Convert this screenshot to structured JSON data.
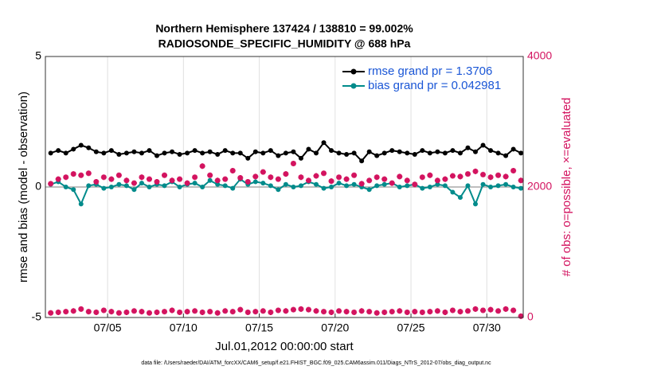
{
  "chart_data": {
    "type": "line",
    "title": "Northern Hemisphere 137424 / 138810 = 99.002%",
    "subtitle": "RADIOSONDE_SPECIFIC_HUMIDITY @ 688 hPa",
    "xlabel": "Jul.01,2012 00:00:00 start",
    "ylabel": "rmse and bias (model - observation)",
    "y2label": "# of obs: o=possible, ×=evaluated",
    "footnote": "data file: /Users/raeder/DAI/ATM_forcXX/CAM6_setup/f.e21.FHIST_BGC.f09_025.CAM6assim.011/Diags_NTrS_2012-07/obs_diag_output.nc",
    "x": [
      1.25,
      1.75,
      2.25,
      2.75,
      3.25,
      3.75,
      4.25,
      4.75,
      5.25,
      5.75,
      6.25,
      6.75,
      7.25,
      7.75,
      8.25,
      8.75,
      9.25,
      9.75,
      10.25,
      10.75,
      11.25,
      11.75,
      12.25,
      12.75,
      13.25,
      13.75,
      14.25,
      14.75,
      15.25,
      15.75,
      16.25,
      16.75,
      17.25,
      17.75,
      18.25,
      18.75,
      19.25,
      19.75,
      20.25,
      20.75,
      21.25,
      21.75,
      22.25,
      22.75,
      23.25,
      23.75,
      24.25,
      24.75,
      25.25,
      25.75,
      26.25,
      26.75,
      27.25,
      27.75,
      28.25,
      28.75,
      29.25,
      29.75,
      30.25,
      30.75,
      31.25,
      31.75,
      32.25
    ],
    "xlim": [
      0.9,
      32.4
    ],
    "xticks": [
      {
        "value": 5,
        "label": "07/05"
      },
      {
        "value": 10,
        "label": "07/10"
      },
      {
        "value": 15,
        "label": "07/15"
      },
      {
        "value": 20,
        "label": "07/20"
      },
      {
        "value": 25,
        "label": "07/25"
      },
      {
        "value": 30,
        "label": "07/30"
      }
    ],
    "ylim": [
      -5,
      5
    ],
    "yticks": [
      -5,
      0,
      5
    ],
    "y2lim": [
      0,
      4000
    ],
    "y2ticks": [
      0,
      2000,
      4000
    ],
    "grid": true,
    "zero_line": true,
    "legend": "upper right",
    "series": [
      {
        "name": "rmse grand pr = 1.3706",
        "color": "#000000",
        "line": true,
        "marker": "dot",
        "values": [
          1.3,
          1.4,
          1.3,
          1.45,
          1.6,
          1.5,
          1.35,
          1.3,
          1.4,
          1.25,
          1.3,
          1.35,
          1.3,
          1.4,
          1.2,
          1.3,
          1.35,
          1.25,
          1.3,
          1.4,
          1.3,
          1.35,
          1.25,
          1.4,
          1.3,
          1.3,
          1.1,
          1.35,
          1.3,
          1.4,
          1.2,
          1.3,
          1.35,
          1.1,
          1.45,
          1.3,
          1.7,
          1.4,
          1.3,
          1.25,
          1.3,
          1.0,
          1.35,
          1.2,
          1.3,
          1.4,
          1.35,
          1.3,
          1.25,
          1.4,
          1.3,
          1.35,
          1.3,
          1.4,
          1.3,
          1.5,
          1.35,
          1.6,
          1.4,
          1.3,
          1.2,
          1.45,
          1.3
        ]
      },
      {
        "name": "bias grand pr = 0.042981",
        "color": "#008b8b",
        "line": true,
        "marker": "dot",
        "values": [
          0.1,
          0.2,
          0.0,
          -0.1,
          -0.65,
          0.05,
          0.1,
          -0.05,
          0.0,
          0.1,
          0.05,
          -0.1,
          0.15,
          0.0,
          0.1,
          0.05,
          0.2,
          0.0,
          0.1,
          0.15,
          0.0,
          0.25,
          0.1,
          0.05,
          -0.05,
          0.3,
          0.1,
          0.2,
          0.15,
          0.05,
          -0.1,
          0.1,
          0.0,
          0.05,
          0.2,
          0.1,
          -0.05,
          0.0,
          0.15,
          0.05,
          0.1,
          0.0,
          -0.1,
          0.05,
          0.1,
          0.15,
          0.0,
          0.05,
          0.1,
          -0.05,
          0.0,
          0.1,
          0.05,
          -0.2,
          -0.4,
          0.05,
          -0.65,
          0.1,
          0.0,
          0.05,
          0.1,
          0.0,
          -0.05
        ]
      },
      {
        "color": "#d3135f",
        "axis": "y2",
        "line": false,
        "marker": "star",
        "values": [
          2050,
          2120,
          2150,
          2200,
          2180,
          2210,
          2080,
          2150,
          2120,
          2180,
          2100,
          2060,
          2150,
          2120,
          2080,
          2180,
          2100,
          2120,
          2060,
          2150,
          2320,
          2180,
          2100,
          2120,
          2250,
          2140,
          2080,
          2160,
          2230,
          2150,
          2120,
          2200,
          2360,
          2150,
          2100,
          2170,
          2210,
          2090,
          2150,
          2120,
          2180,
          2050,
          2100,
          2150,
          2120,
          2060,
          2160,
          2100,
          2040,
          2150,
          2180,
          2100,
          2120,
          2170,
          2160,
          2200,
          2240,
          2190,
          2150,
          2180,
          2160,
          2250,
          2100
        ]
      },
      {
        "color": "#d3135f",
        "axis": "y2",
        "line": false,
        "marker": "star",
        "values": [
          70,
          80,
          90,
          100,
          130,
          90,
          80,
          110,
          90,
          70,
          80,
          100,
          90,
          70,
          80,
          90,
          110,
          80,
          90,
          100,
          80,
          90,
          70,
          100,
          90,
          120,
          80,
          90,
          100,
          80,
          110,
          100,
          120,
          130,
          120,
          100,
          90,
          80,
          100,
          90,
          80,
          100,
          90,
          70,
          80,
          90,
          100,
          80,
          90,
          80,
          90,
          100,
          80,
          110,
          90,
          100,
          130,
          110,
          120,
          100,
          130,
          110,
          20
        ]
      }
    ]
  }
}
